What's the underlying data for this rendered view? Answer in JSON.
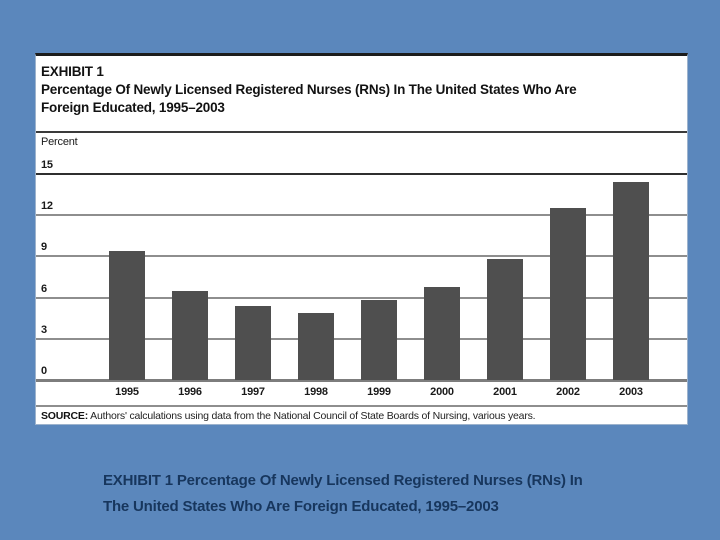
{
  "slide": {
    "background_color": "#5b87bc",
    "caption": {
      "line1": "EXHIBIT 1 Percentage Of Newly Licensed Registered Nurses (RNs) In",
      "line2": "The United States Who Are Foreign Educated, 1995–2003",
      "color": "#17365d"
    }
  },
  "exhibit": {
    "label": "EXHIBIT 1",
    "title_line1": "Percentage Of Newly Licensed Registered Nurses (RNs) In The United States Who Are",
    "title_line2": "Foreign Educated, 1995–2003",
    "axis_unit_label": "Percent",
    "source_label": "SOURCE:",
    "source_text": " Authors' calculations using data from the National Council of State Boards of Nursing, various years."
  },
  "chart_data": {
    "type": "bar",
    "title": "Percentage Of Newly Licensed Registered Nurses (RNs) In The United States Who Are Foreign Educated, 1995–2003",
    "categories": [
      "1995",
      "1996",
      "1997",
      "1998",
      "1999",
      "2000",
      "2001",
      "2002",
      "2003"
    ],
    "values": [
      9.4,
      6.5,
      5.4,
      4.9,
      5.8,
      6.8,
      8.8,
      12.5,
      14.4
    ],
    "xlabel": "",
    "ylabel": "Percent",
    "ylim": [
      0,
      15
    ],
    "yticks": [
      0,
      3,
      6,
      9,
      12,
      15
    ],
    "grid": true,
    "legend": false,
    "bar_color": "#4f4f4f"
  }
}
